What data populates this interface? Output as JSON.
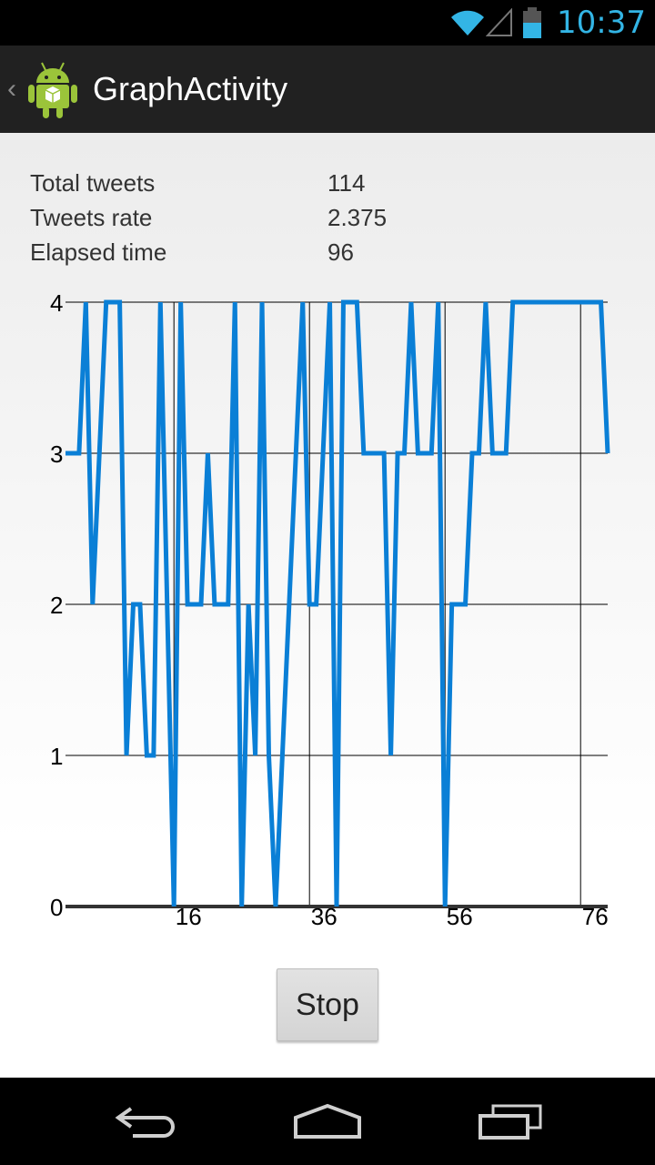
{
  "status_bar": {
    "time": "10:37",
    "icons": [
      "wifi-icon",
      "signal-icon",
      "battery-icon"
    ],
    "accent_color": "#33b5e5"
  },
  "action_bar": {
    "title": "GraphActivity",
    "icons": [
      "up-caret-icon",
      "android-app-icon"
    ]
  },
  "stats": [
    {
      "label": "Total tweets",
      "value": "114"
    },
    {
      "label": "Tweets rate",
      "value": "2.375"
    },
    {
      "label": "Elapsed time",
      "value": "96"
    }
  ],
  "chart_data": {
    "type": "line",
    "series": [
      {
        "color": "#0a7fd6",
        "x": [
          0,
          1,
          2,
          3,
          4,
          5,
          6,
          7,
          8,
          9,
          10,
          11,
          12,
          13,
          14,
          15,
          16,
          17,
          18,
          19,
          20,
          21,
          22,
          23,
          24,
          25,
          26,
          27,
          28,
          29,
          30,
          31,
          32,
          33,
          34,
          35,
          36,
          37,
          38,
          39,
          40,
          41,
          42,
          43,
          44,
          45,
          46,
          47,
          48,
          49,
          50,
          51,
          52,
          53,
          54,
          55,
          56,
          57,
          58,
          59,
          60,
          61,
          62,
          63,
          64,
          65,
          66,
          67,
          68,
          69,
          70,
          71,
          72,
          73,
          74,
          75,
          76,
          77,
          78,
          79,
          80
        ],
        "values": [
          3,
          3,
          3,
          4,
          2,
          3,
          4,
          4,
          4,
          1,
          2,
          2,
          1,
          1,
          4,
          2,
          0,
          4,
          2,
          2,
          2,
          3,
          2,
          2,
          2,
          4,
          0,
          2,
          1,
          4,
          1,
          0,
          1,
          2,
          3,
          4,
          2,
          2,
          3,
          4,
          0,
          4,
          4,
          4,
          3,
          3,
          3,
          3,
          1,
          3,
          3,
          4,
          3,
          3,
          3,
          4,
          0,
          2,
          2,
          2,
          3,
          3,
          4,
          3,
          3,
          3,
          4,
          4,
          4,
          4,
          4,
          4,
          4,
          4,
          4,
          4,
          4,
          4,
          4,
          4,
          3
        ],
        "note_visible": ""
      }
    ],
    "x_ticks": [
      "16",
      "36",
      "56",
      "76"
    ],
    "y_ticks": [
      "0",
      "1",
      "2",
      "3",
      "4"
    ],
    "xlim": [
      0,
      80
    ],
    "ylim": [
      0,
      4
    ],
    "grid": true,
    "title": "",
    "xlabel": "",
    "ylabel": ""
  },
  "stop_button": {
    "label": "Stop"
  },
  "nav_bar": {
    "icons": [
      "back-icon",
      "home-icon",
      "recent-apps-icon"
    ]
  }
}
